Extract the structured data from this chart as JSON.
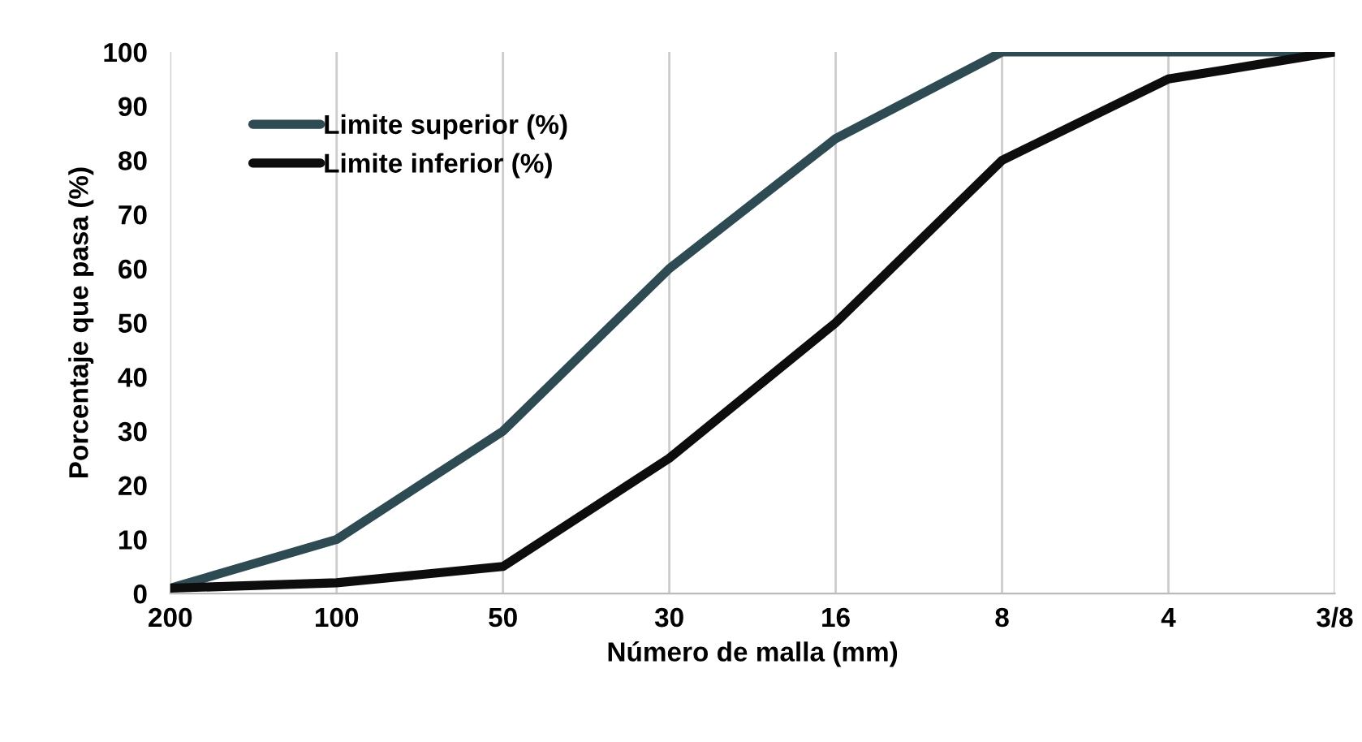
{
  "chart_data": {
    "type": "line",
    "xlabel": "Número de malla (mm)",
    "ylabel": "Porcentaje que pasa (%)",
    "categories": [
      "200",
      "100",
      "50",
      "30",
      "16",
      "8",
      "4",
      "3/8"
    ],
    "series": [
      {
        "name": "Limite superior (%)",
        "color": "#2e4a52",
        "values": [
          1,
          10,
          30,
          60,
          84,
          100,
          100,
          100
        ]
      },
      {
        "name": "Limite inferior (%)",
        "color": "#0d0d0d",
        "values": [
          1,
          2,
          5,
          25,
          50,
          80,
          95,
          100
        ]
      }
    ],
    "ylim": [
      0,
      100
    ],
    "yticks": [
      0,
      10,
      20,
      30,
      40,
      50,
      60,
      70,
      80,
      90,
      100
    ],
    "grid": "x",
    "legend": "top left",
    "marker": "none",
    "line_style": "solid"
  }
}
